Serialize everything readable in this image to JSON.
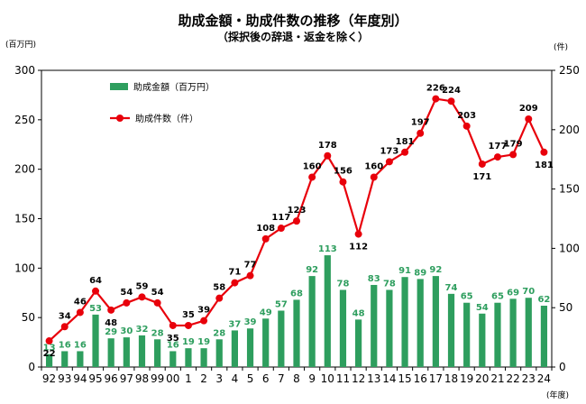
{
  "chart_data": {
    "type": "bar+line",
    "title": "助成金額・助成件数の推移（年度別）",
    "subtitle": "（採択後の辞退・返金を除く）",
    "y_left_unit": "(百万円)",
    "y_right_unit": "(件)",
    "x_unit": "(年度)",
    "ylim_left": [
      0,
      300
    ],
    "ylim_right": [
      0,
      250
    ],
    "y_left_ticks": [
      "0",
      "50",
      "100",
      "150",
      "200",
      "250",
      "300"
    ],
    "y_right_ticks": [
      "0",
      "50",
      "100",
      "150",
      "200",
      "250"
    ],
    "categories": [
      "92",
      "93",
      "94",
      "95",
      "96",
      "97",
      "98",
      "99",
      "00",
      "1",
      "2",
      "3",
      "4",
      "5",
      "6",
      "7",
      "8",
      "9",
      "10",
      "11",
      "12",
      "13",
      "14",
      "15",
      "16",
      "17",
      "18",
      "19",
      "20",
      "21",
      "22",
      "23",
      "24"
    ],
    "series": [
      {
        "name": "助成金額（百万円）",
        "type": "bar",
        "axis": "left",
        "color": "#2e9e5e",
        "values": [
          13,
          16,
          16,
          53,
          29,
          30,
          32,
          28,
          16,
          19,
          19,
          28,
          37,
          39,
          49,
          57,
          68,
          92,
          113,
          78,
          48,
          83,
          78,
          91,
          89,
          92,
          74,
          65,
          54,
          65,
          69,
          70,
          62
        ]
      },
      {
        "name": "助成件数（件）",
        "type": "line",
        "axis": "right",
        "color": "#e8000b",
        "values": [
          22,
          34,
          46,
          64,
          48,
          54,
          59,
          54,
          35,
          35,
          39,
          58,
          71,
          77,
          108,
          117,
          123,
          160,
          178,
          156,
          112,
          160,
          173,
          181,
          197,
          226,
          224,
          203,
          171,
          177,
          179,
          209,
          181
        ]
      }
    ],
    "legend_position": "top-left",
    "grid": false
  }
}
